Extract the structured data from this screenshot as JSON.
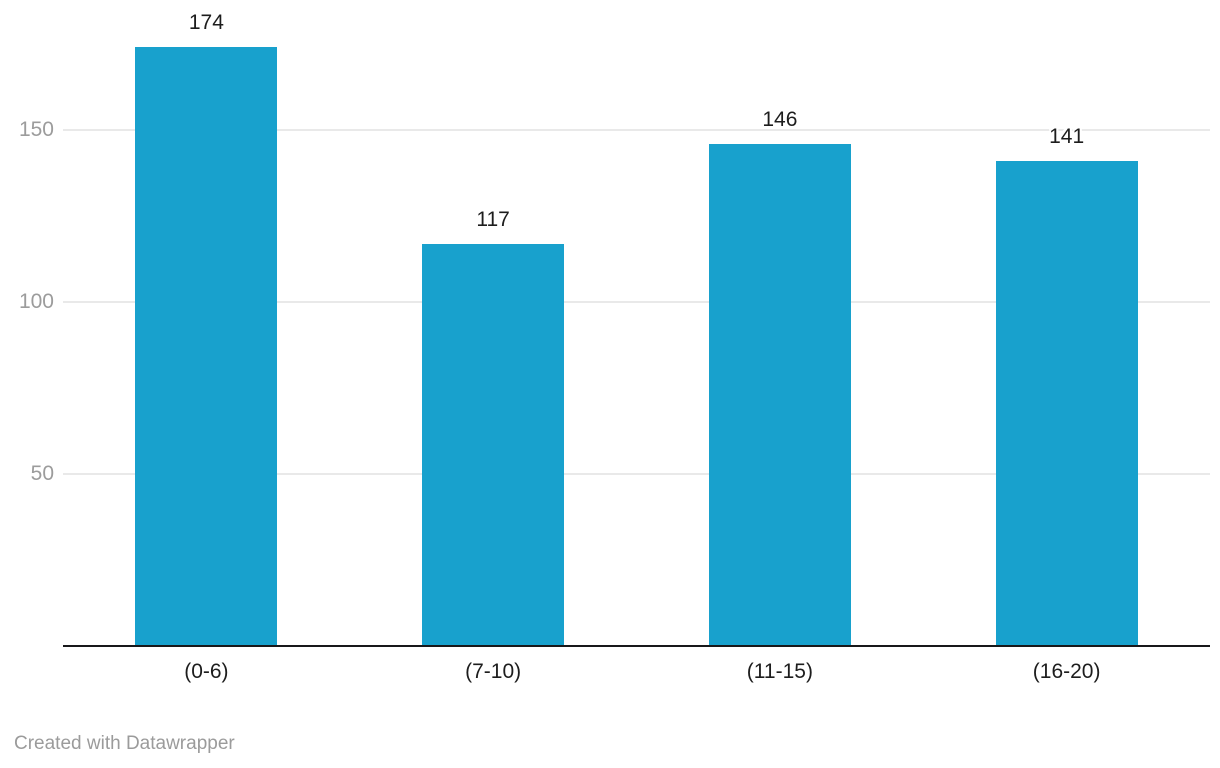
{
  "chart_data": {
    "type": "bar",
    "categories": [
      "(0-6)",
      "(7-10)",
      "(11-15)",
      "(16-20)"
    ],
    "values": [
      174,
      117,
      146,
      141
    ],
    "title": "",
    "xlabel": "",
    "ylabel": "",
    "ylim": [
      0,
      188
    ],
    "yticks": [
      50,
      100,
      150
    ],
    "grid": true,
    "value_labels_shown": true,
    "legend": "none"
  },
  "colors": {
    "bar": "#18a1cd",
    "gridline": "#e9e9e9",
    "axis_line": "#18181a",
    "tick_label": "#9c9c9c",
    "value_label": "#1d1d1d",
    "category_label": "#1d1d1d",
    "footer_text": "#9b9b9b",
    "background": "#ffffff"
  },
  "footer": {
    "attribution": "Created with Datawrapper"
  }
}
